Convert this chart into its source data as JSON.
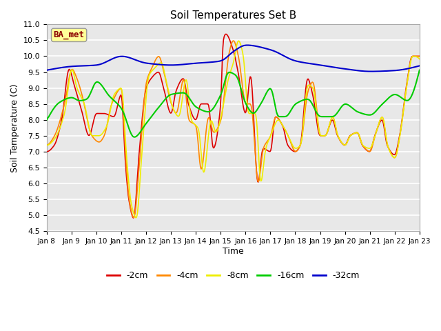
{
  "title": "Soil Temperatures Set B",
  "xlabel": "Time",
  "ylabel": "Soil Temperature (C)",
  "ylim": [
    4.5,
    11.0
  ],
  "yticks": [
    4.5,
    5.0,
    5.5,
    6.0,
    6.5,
    7.0,
    7.5,
    8.0,
    8.5,
    9.0,
    9.5,
    10.0,
    10.5,
    11.0
  ],
  "plot_bg_color": "#e8e8e8",
  "fig_bg_color": "#ffffff",
  "grid_color": "#ffffff",
  "label_box_text": "BA_met",
  "label_box_facecolor": "#ffff99",
  "label_box_edgecolor": "#999999",
  "label_box_textcolor": "#8b0000",
  "series": {
    "-2cm": {
      "color": "#dd0000",
      "lw": 1.2
    },
    "-4cm": {
      "color": "#ff8800",
      "lw": 1.2
    },
    "-8cm": {
      "color": "#eeee00",
      "lw": 1.2
    },
    "-16cm": {
      "color": "#00cc00",
      "lw": 1.5
    },
    "-32cm": {
      "color": "#0000cc",
      "lw": 1.5
    }
  },
  "xtick_labels": [
    "Jan 8",
    "Jan 9",
    "Jan 10",
    "Jan 11",
    "Jan 12",
    "Jan 13",
    "Jan 14",
    "Jan 15",
    "Jan 16",
    "Jan 17",
    "Jan 18",
    "Jan 19",
    "Jan 20",
    "Jan 21",
    "Jan 22",
    "Jan 23"
  ],
  "legend_order": [
    "-2cm",
    "-4cm",
    "-8cm",
    "-16cm",
    "-32cm"
  ]
}
